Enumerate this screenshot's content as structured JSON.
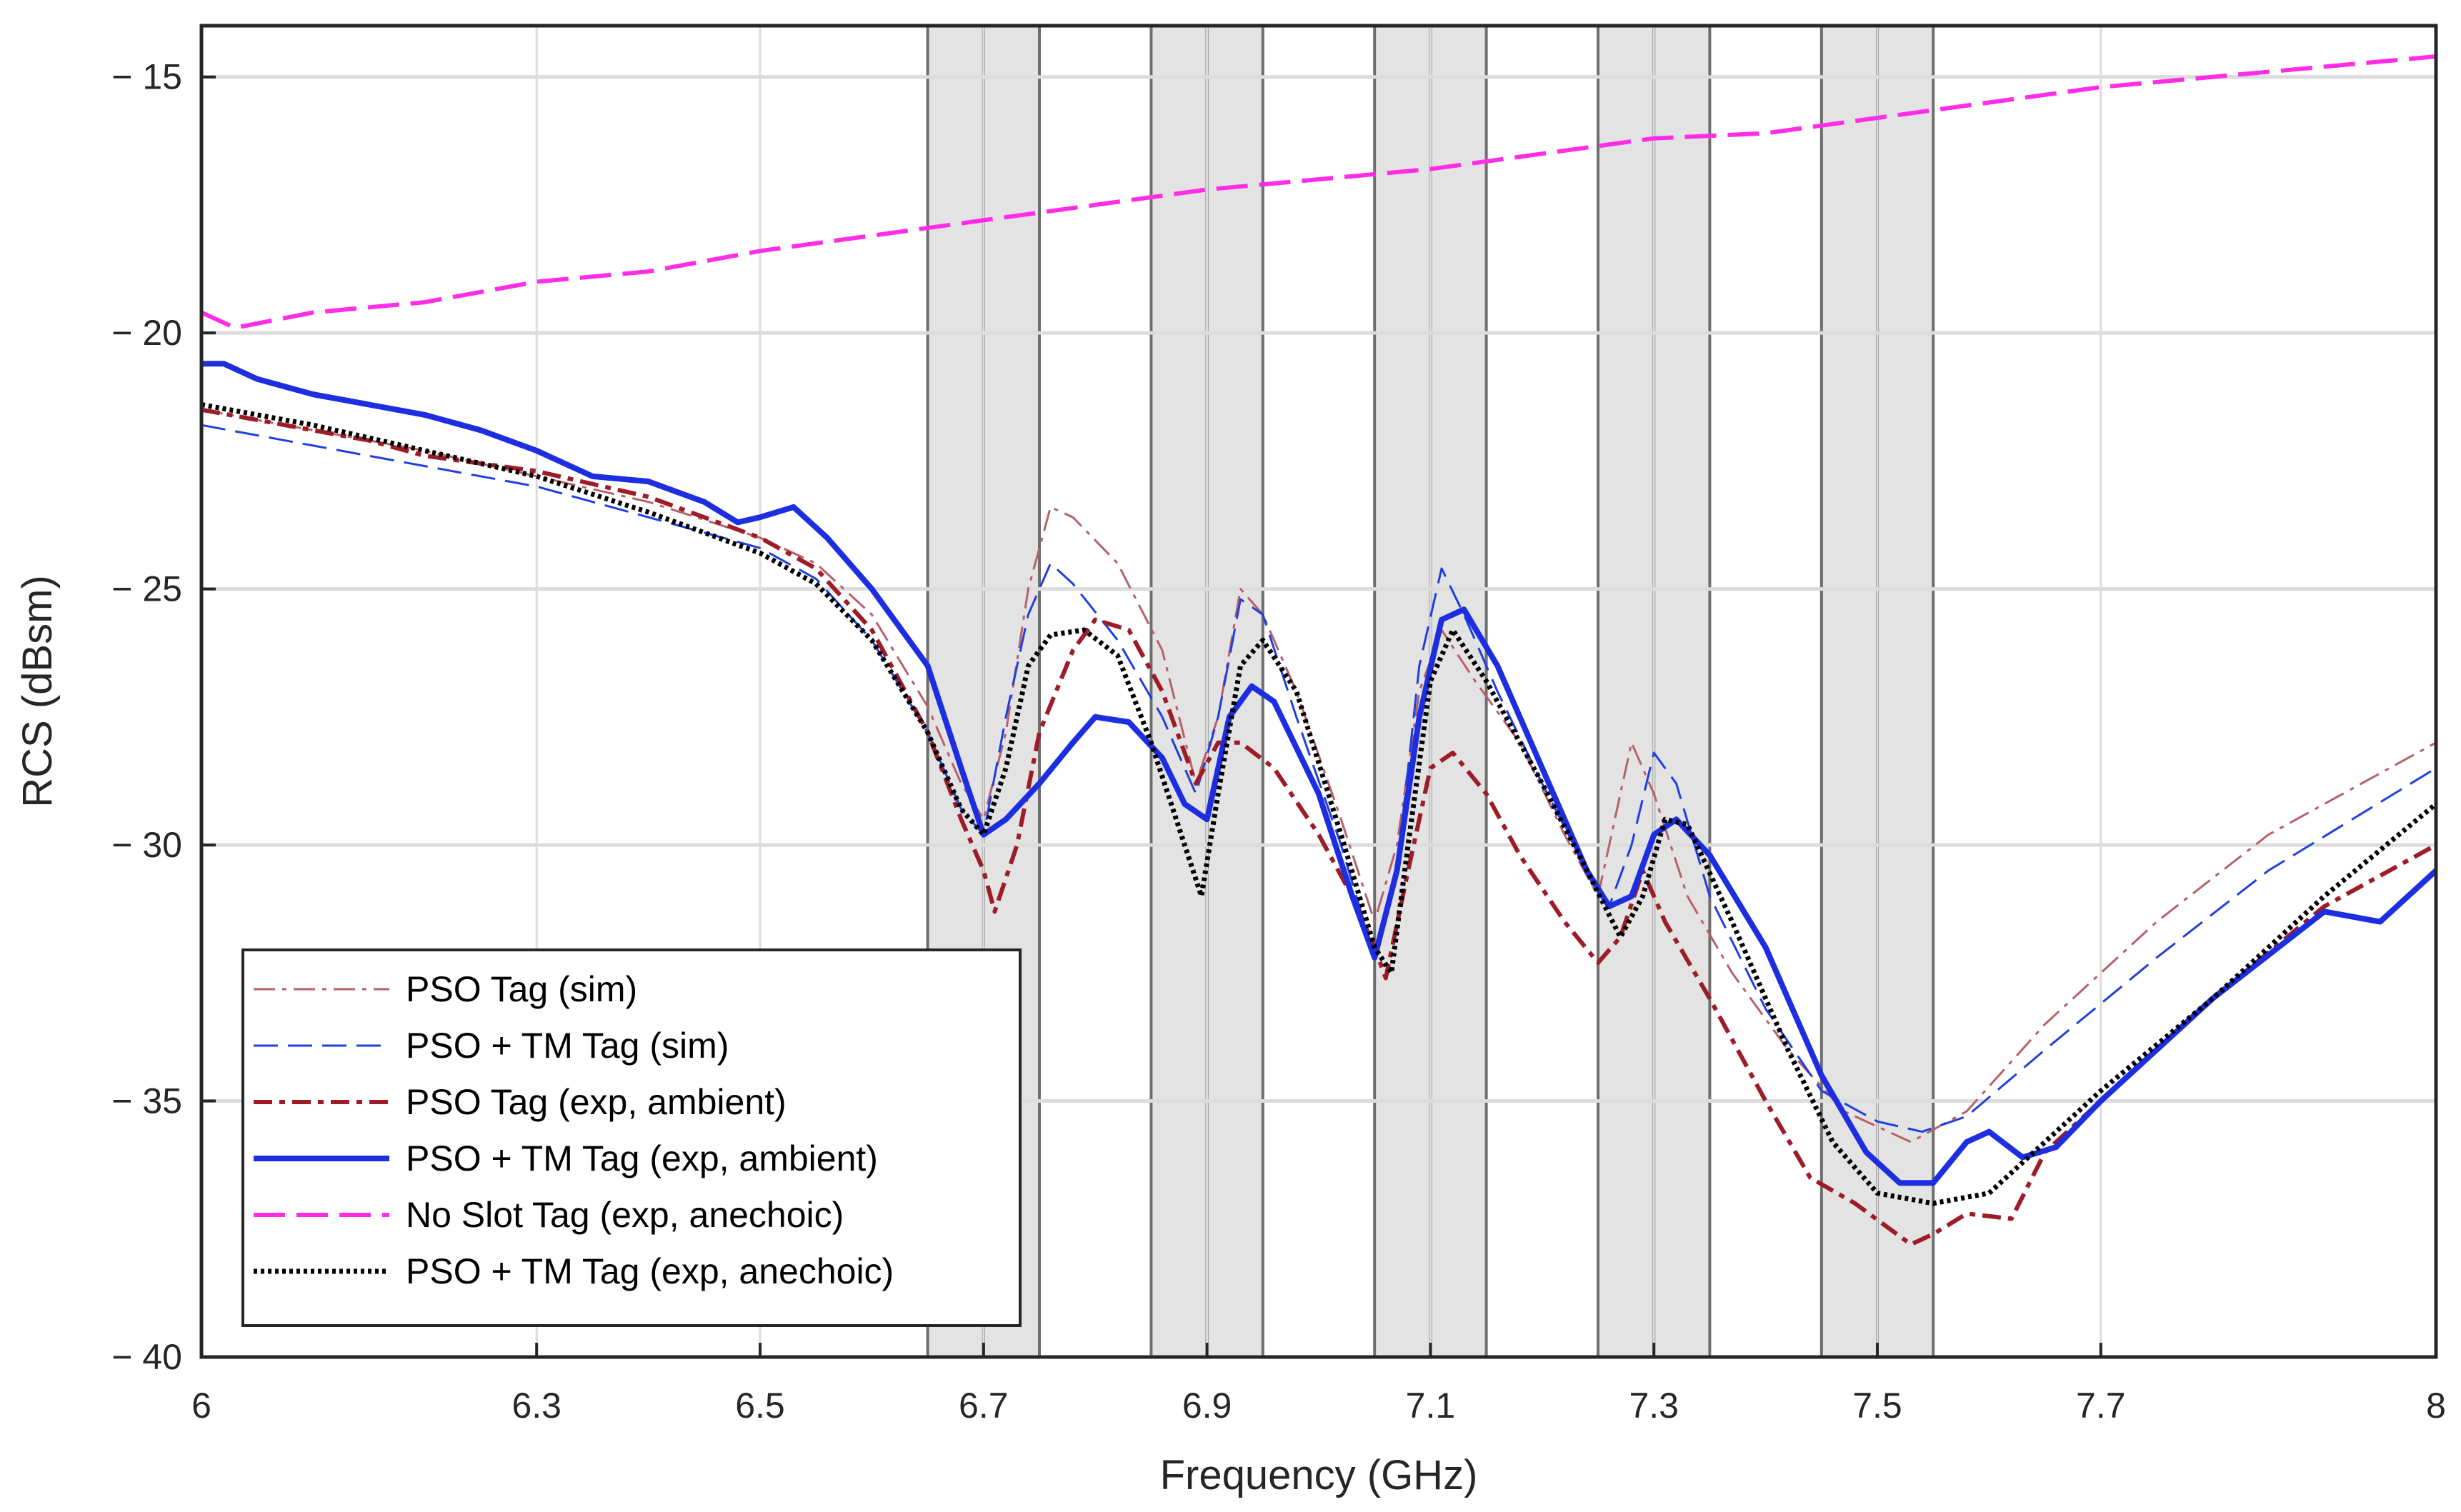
{
  "chart_data": {
    "type": "line",
    "title": "",
    "xlabel": "Frequency (GHz)",
    "ylabel": "RCS (dBsm)",
    "xlim": [
      6,
      8
    ],
    "ylim": [
      -40,
      -14
    ],
    "xticks": [
      6,
      6.3,
      6.5,
      6.7,
      6.9,
      7.1,
      7.3,
      7.5,
      7.7,
      8
    ],
    "xtick_labels": [
      "6",
      "6.3",
      "6.5",
      "6.7",
      "6.9",
      "7.1",
      "7.3",
      "7.5",
      "7.7",
      "8"
    ],
    "yticks": [
      -40,
      -35,
      -30,
      -25,
      -20,
      -15
    ],
    "ytick_labels": [
      "− 40",
      "− 35",
      "− 30",
      "− 25",
      "− 20",
      "− 15"
    ],
    "grid": true,
    "legend_position": "bottom-left",
    "shaded_bands": [
      {
        "x0": 6.65,
        "x1": 6.75,
        "center": 6.7
      },
      {
        "x0": 6.85,
        "x1": 6.95,
        "center": 6.9
      },
      {
        "x0": 7.05,
        "x1": 7.15,
        "center": 7.1
      },
      {
        "x0": 7.25,
        "x1": 7.35,
        "center": 7.3
      },
      {
        "x0": 7.45,
        "x1": 7.55,
        "center": 7.5
      }
    ],
    "series": [
      {
        "name": "PSO Tag (sim)",
        "color": "#b8606a",
        "dash": "dashdot",
        "width": 3,
        "points": [
          [
            6,
            -21.5
          ],
          [
            6.1,
            -21.9
          ],
          [
            6.2,
            -22.3
          ],
          [
            6.3,
            -22.8
          ],
          [
            6.4,
            -23.3
          ],
          [
            6.5,
            -24.0
          ],
          [
            6.55,
            -24.5
          ],
          [
            6.6,
            -25.5
          ],
          [
            6.65,
            -27.3
          ],
          [
            6.68,
            -28.8
          ],
          [
            6.7,
            -29.5
          ],
          [
            6.72,
            -27.8
          ],
          [
            6.74,
            -25.0
          ],
          [
            6.76,
            -23.4
          ],
          [
            6.78,
            -23.6
          ],
          [
            6.82,
            -24.5
          ],
          [
            6.86,
            -26.2
          ],
          [
            6.89,
            -28.8
          ],
          [
            6.91,
            -27.5
          ],
          [
            6.93,
            -25.0
          ],
          [
            6.95,
            -25.5
          ],
          [
            6.98,
            -27.0
          ],
          [
            7.02,
            -29.5
          ],
          [
            7.05,
            -31.5
          ],
          [
            7.07,
            -30.0
          ],
          [
            7.09,
            -27.0
          ],
          [
            7.11,
            -25.8
          ],
          [
            7.14,
            -26.8
          ],
          [
            7.18,
            -28.0
          ],
          [
            7.22,
            -29.8
          ],
          [
            7.25,
            -31.0
          ],
          [
            7.27,
            -29.0
          ],
          [
            7.28,
            -28.0
          ],
          [
            7.3,
            -29.0
          ],
          [
            7.33,
            -31.0
          ],
          [
            7.37,
            -32.5
          ],
          [
            7.42,
            -34.0
          ],
          [
            7.47,
            -35.2
          ],
          [
            7.53,
            -35.8
          ],
          [
            7.58,
            -35.2
          ],
          [
            7.65,
            -33.5
          ],
          [
            7.75,
            -31.5
          ],
          [
            7.85,
            -29.8
          ],
          [
            8.0,
            -28.0
          ]
        ]
      },
      {
        "name": "PSO + TM Tag (sim)",
        "color": "#1f3fe0",
        "dash": "dashed",
        "width": 3,
        "points": [
          [
            6,
            -21.8
          ],
          [
            6.1,
            -22.2
          ],
          [
            6.2,
            -22.6
          ],
          [
            6.3,
            -23.0
          ],
          [
            6.4,
            -23.6
          ],
          [
            6.5,
            -24.2
          ],
          [
            6.55,
            -24.8
          ],
          [
            6.6,
            -26.0
          ],
          [
            6.65,
            -27.8
          ],
          [
            6.68,
            -29.3
          ],
          [
            6.7,
            -29.8
          ],
          [
            6.72,
            -27.5
          ],
          [
            6.74,
            -25.5
          ],
          [
            6.76,
            -24.5
          ],
          [
            6.78,
            -24.9
          ],
          [
            6.82,
            -26.0
          ],
          [
            6.86,
            -27.5
          ],
          [
            6.89,
            -29.0
          ],
          [
            6.91,
            -27.5
          ],
          [
            6.93,
            -25.2
          ],
          [
            6.95,
            -25.5
          ],
          [
            6.98,
            -27.5
          ],
          [
            7.02,
            -30.0
          ],
          [
            7.05,
            -32.2
          ],
          [
            7.07,
            -30.5
          ],
          [
            7.09,
            -26.5
          ],
          [
            7.11,
            -24.6
          ],
          [
            7.13,
            -25.5
          ],
          [
            7.16,
            -27.0
          ],
          [
            7.2,
            -28.8
          ],
          [
            7.24,
            -30.5
          ],
          [
            7.26,
            -31.2
          ],
          [
            7.28,
            -30.0
          ],
          [
            7.3,
            -28.2
          ],
          [
            7.32,
            -28.8
          ],
          [
            7.35,
            -31.0
          ],
          [
            7.4,
            -33.2
          ],
          [
            7.45,
            -34.8
          ],
          [
            7.5,
            -35.4
          ],
          [
            7.54,
            -35.6
          ],
          [
            7.58,
            -35.3
          ],
          [
            7.65,
            -34.0
          ],
          [
            7.75,
            -32.2
          ],
          [
            7.85,
            -30.5
          ],
          [
            8.0,
            -28.5
          ]
        ]
      },
      {
        "name": "PSO Tag (exp, ambient)",
        "color": "#9e1b28",
        "dash": "dashdotbold",
        "width": 6,
        "points": [
          [
            6,
            -21.5
          ],
          [
            6.05,
            -21.7
          ],
          [
            6.1,
            -21.9
          ],
          [
            6.15,
            -22.1
          ],
          [
            6.2,
            -22.4
          ],
          [
            6.3,
            -22.7
          ],
          [
            6.4,
            -23.2
          ],
          [
            6.5,
            -24.0
          ],
          [
            6.55,
            -24.6
          ],
          [
            6.6,
            -25.8
          ],
          [
            6.65,
            -27.8
          ],
          [
            6.68,
            -29.5
          ],
          [
            6.7,
            -30.5
          ],
          [
            6.71,
            -31.3
          ],
          [
            6.73,
            -30.0
          ],
          [
            6.75,
            -27.8
          ],
          [
            6.78,
            -26.2
          ],
          [
            6.8,
            -25.6
          ],
          [
            6.83,
            -25.8
          ],
          [
            6.86,
            -27.0
          ],
          [
            6.89,
            -28.8
          ],
          [
            6.91,
            -28.0
          ],
          [
            6.93,
            -28.0
          ],
          [
            6.96,
            -28.5
          ],
          [
            7.0,
            -29.8
          ],
          [
            7.03,
            -31.0
          ],
          [
            7.05,
            -32.0
          ],
          [
            7.06,
            -32.6
          ],
          [
            7.08,
            -30.5
          ],
          [
            7.1,
            -28.5
          ],
          [
            7.12,
            -28.2
          ],
          [
            7.15,
            -29.0
          ],
          [
            7.18,
            -30.2
          ],
          [
            7.22,
            -31.5
          ],
          [
            7.25,
            -32.3
          ],
          [
            7.27,
            -31.8
          ],
          [
            7.29,
            -30.5
          ],
          [
            7.31,
            -31.5
          ],
          [
            7.35,
            -33.0
          ],
          [
            7.4,
            -35.0
          ],
          [
            7.44,
            -36.5
          ],
          [
            7.48,
            -37.0
          ],
          [
            7.53,
            -37.8
          ],
          [
            7.55,
            -37.6
          ],
          [
            7.58,
            -37.2
          ],
          [
            7.62,
            -37.3
          ],
          [
            7.65,
            -36.0
          ],
          [
            7.7,
            -35.0
          ],
          [
            7.8,
            -33.0
          ],
          [
            7.9,
            -31.2
          ],
          [
            8.0,
            -30.0
          ]
        ]
      },
      {
        "name": "PSO + TM Tag (exp, ambient)",
        "color": "#1c2ee0",
        "dash": "solid",
        "width": 8,
        "points": [
          [
            6,
            -20.6
          ],
          [
            6.02,
            -20.6
          ],
          [
            6.05,
            -20.9
          ],
          [
            6.1,
            -21.2
          ],
          [
            6.15,
            -21.4
          ],
          [
            6.2,
            -21.6
          ],
          [
            6.25,
            -21.9
          ],
          [
            6.3,
            -22.3
          ],
          [
            6.35,
            -22.8
          ],
          [
            6.4,
            -22.9
          ],
          [
            6.45,
            -23.3
          ],
          [
            6.48,
            -23.7
          ],
          [
            6.5,
            -23.6
          ],
          [
            6.53,
            -23.4
          ],
          [
            6.56,
            -24.0
          ],
          [
            6.6,
            -25.0
          ],
          [
            6.65,
            -26.5
          ],
          [
            6.68,
            -28.5
          ],
          [
            6.7,
            -29.8
          ],
          [
            6.72,
            -29.5
          ],
          [
            6.75,
            -28.8
          ],
          [
            6.78,
            -28.0
          ],
          [
            6.8,
            -27.5
          ],
          [
            6.83,
            -27.6
          ],
          [
            6.86,
            -28.3
          ],
          [
            6.88,
            -29.2
          ],
          [
            6.9,
            -29.5
          ],
          [
            6.92,
            -27.5
          ],
          [
            6.94,
            -26.9
          ],
          [
            6.96,
            -27.2
          ],
          [
            7.0,
            -29.0
          ],
          [
            7.03,
            -31.0
          ],
          [
            7.05,
            -32.2
          ],
          [
            7.07,
            -30.5
          ],
          [
            7.09,
            -27.5
          ],
          [
            7.11,
            -25.6
          ],
          [
            7.13,
            -25.4
          ],
          [
            7.16,
            -26.5
          ],
          [
            7.2,
            -28.5
          ],
          [
            7.24,
            -30.5
          ],
          [
            7.26,
            -31.2
          ],
          [
            7.28,
            -31.0
          ],
          [
            7.3,
            -29.8
          ],
          [
            7.32,
            -29.5
          ],
          [
            7.35,
            -30.2
          ],
          [
            7.4,
            -32.0
          ],
          [
            7.45,
            -34.5
          ],
          [
            7.49,
            -36.0
          ],
          [
            7.52,
            -36.6
          ],
          [
            7.55,
            -36.6
          ],
          [
            7.58,
            -35.8
          ],
          [
            7.6,
            -35.6
          ],
          [
            7.63,
            -36.1
          ],
          [
            7.66,
            -35.9
          ],
          [
            7.7,
            -35.0
          ],
          [
            7.8,
            -33.0
          ],
          [
            7.9,
            -31.3
          ],
          [
            7.95,
            -31.5
          ],
          [
            8.0,
            -30.5
          ]
        ]
      },
      {
        "name": "No Slot Tag (exp, anechoic)",
        "color": "#ff2ee6",
        "dash": "dashedlong",
        "width": 6,
        "points": [
          [
            6,
            -19.6
          ],
          [
            6.03,
            -19.9
          ],
          [
            6.1,
            -19.6
          ],
          [
            6.2,
            -19.4
          ],
          [
            6.3,
            -19.0
          ],
          [
            6.4,
            -18.8
          ],
          [
            6.5,
            -18.4
          ],
          [
            6.6,
            -18.1
          ],
          [
            6.7,
            -17.8
          ],
          [
            6.8,
            -17.5
          ],
          [
            6.9,
            -17.2
          ],
          [
            7.0,
            -17.0
          ],
          [
            7.1,
            -16.8
          ],
          [
            7.2,
            -16.5
          ],
          [
            7.3,
            -16.2
          ],
          [
            7.4,
            -16.1
          ],
          [
            7.5,
            -15.8
          ],
          [
            7.6,
            -15.5
          ],
          [
            7.7,
            -15.2
          ],
          [
            7.8,
            -15.0
          ],
          [
            7.9,
            -14.8
          ],
          [
            8.0,
            -14.6
          ]
        ]
      },
      {
        "name": "PSO + TM Tag (exp, anechoic)",
        "color": "#000000",
        "dash": "dotted",
        "width": 7,
        "points": [
          [
            6,
            -21.4
          ],
          [
            6.1,
            -21.8
          ],
          [
            6.2,
            -22.3
          ],
          [
            6.3,
            -22.8
          ],
          [
            6.4,
            -23.5
          ],
          [
            6.5,
            -24.3
          ],
          [
            6.55,
            -24.9
          ],
          [
            6.6,
            -26.0
          ],
          [
            6.65,
            -27.8
          ],
          [
            6.68,
            -29.3
          ],
          [
            6.7,
            -29.8
          ],
          [
            6.72,
            -28.5
          ],
          [
            6.74,
            -26.5
          ],
          [
            6.76,
            -25.9
          ],
          [
            6.79,
            -25.8
          ],
          [
            6.82,
            -26.3
          ],
          [
            6.85,
            -28.0
          ],
          [
            6.88,
            -30.0
          ],
          [
            6.895,
            -31.0
          ],
          [
            6.91,
            -29.0
          ],
          [
            6.93,
            -26.5
          ],
          [
            6.95,
            -26.0
          ],
          [
            6.98,
            -27.0
          ],
          [
            7.02,
            -29.8
          ],
          [
            7.05,
            -32.0
          ],
          [
            7.065,
            -32.5
          ],
          [
            7.08,
            -30.0
          ],
          [
            7.1,
            -26.8
          ],
          [
            7.12,
            -25.8
          ],
          [
            7.15,
            -26.8
          ],
          [
            7.2,
            -28.8
          ],
          [
            7.24,
            -30.5
          ],
          [
            7.27,
            -31.8
          ],
          [
            7.29,
            -31.0
          ],
          [
            7.31,
            -29.5
          ],
          [
            7.33,
            -29.6
          ],
          [
            7.37,
            -31.5
          ],
          [
            7.42,
            -34.0
          ],
          [
            7.46,
            -35.8
          ],
          [
            7.5,
            -36.8
          ],
          [
            7.55,
            -37.0
          ],
          [
            7.6,
            -36.8
          ],
          [
            7.65,
            -35.8
          ],
          [
            7.7,
            -34.8
          ],
          [
            7.8,
            -33.0
          ],
          [
            7.9,
            -31.0
          ],
          [
            8.0,
            -29.2
          ]
        ]
      }
    ]
  }
}
